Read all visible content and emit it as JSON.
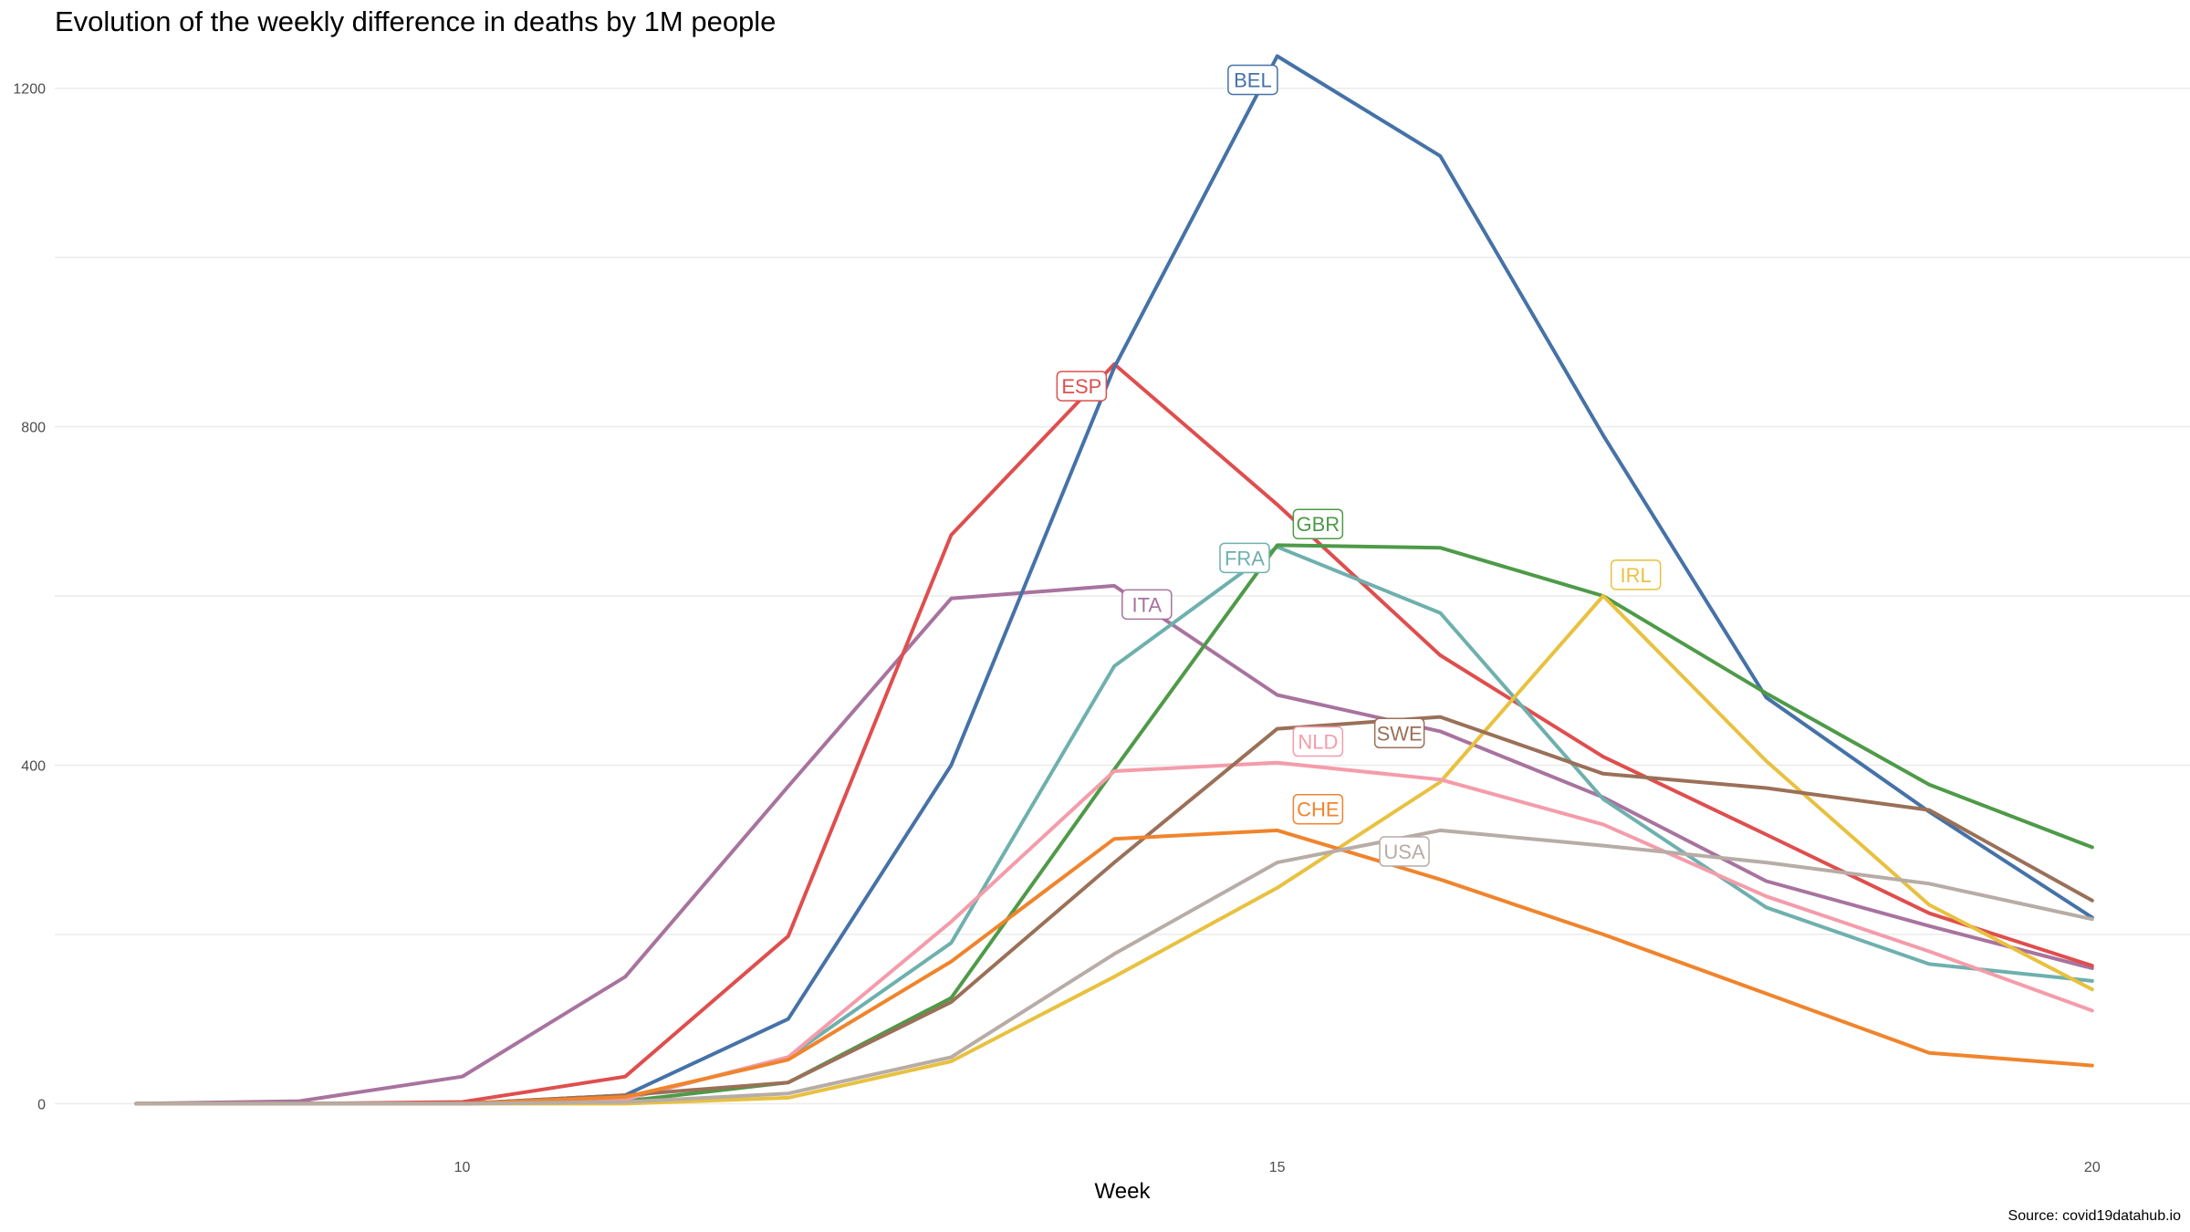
{
  "chart_data": {
    "type": "line",
    "title": "Evolution of the weekly difference in deaths by 1M people",
    "xlabel": "Week",
    "ylabel": "",
    "caption": "Source: covid19datahub.io",
    "xlim": [
      7.5,
      20.6
    ],
    "ylim": [
      -60,
      1245
    ],
    "x_ticks": [
      10,
      15,
      20
    ],
    "y_ticks": [
      0,
      400,
      800,
      1200
    ],
    "y_minor_ticks": [
      200,
      600,
      1000
    ],
    "grid": true,
    "legend": "none",
    "series": [
      {
        "name": "ITA",
        "color": "#A8739E",
        "x": [
          8,
          9,
          10,
          11,
          12,
          13,
          14,
          15,
          16,
          17,
          18,
          19,
          20
        ],
        "y": [
          0,
          3,
          32,
          150,
          375,
          597,
          612,
          483,
          440,
          362,
          263,
          210,
          160
        ],
        "label": {
          "x": 14.2,
          "y": 590
        }
      },
      {
        "name": "ESP",
        "color": "#DF4E4E",
        "x": [
          8,
          9,
          10,
          11,
          12,
          13,
          14,
          15,
          16,
          17,
          18,
          19,
          20
        ],
        "y": [
          0,
          0,
          2,
          32,
          198,
          672,
          874,
          708,
          530,
          410,
          318,
          225,
          163
        ],
        "label": {
          "x": 13.8,
          "y": 848
        }
      },
      {
        "name": "BEL",
        "color": "#4572A7",
        "x": [
          8,
          9,
          10,
          11,
          12,
          13,
          14,
          15,
          16,
          17,
          18,
          19,
          20
        ],
        "y": [
          0,
          0,
          0,
          10,
          100,
          400,
          870,
          1238,
          1120,
          790,
          480,
          345,
          220
        ],
        "label": {
          "x": 14.85,
          "y": 1210
        }
      },
      {
        "name": "FRA",
        "color": "#6EB0AD",
        "x": [
          8,
          9,
          10,
          11,
          12,
          13,
          14,
          15,
          16,
          17,
          18,
          19,
          20
        ],
        "y": [
          0,
          0,
          0,
          5,
          55,
          190,
          517,
          658,
          580,
          360,
          232,
          165,
          145
        ],
        "label": {
          "x": 14.8,
          "y": 645
        }
      },
      {
        "name": "GBR",
        "color": "#4E9A48",
        "x": [
          8,
          9,
          10,
          11,
          12,
          13,
          14,
          15,
          16,
          17,
          18,
          19,
          20
        ],
        "y": [
          0,
          0,
          0,
          3,
          25,
          125,
          395,
          660,
          657,
          600,
          485,
          377,
          303
        ],
        "label": {
          "x": 15.25,
          "y": 685
        }
      },
      {
        "name": "IRL",
        "color": "#E8C13F",
        "x": [
          8,
          9,
          10,
          11,
          12,
          13,
          14,
          15,
          16,
          17,
          18,
          19,
          20
        ],
        "y": [
          0,
          0,
          0,
          0,
          7,
          50,
          150,
          255,
          380,
          600,
          405,
          235,
          135
        ],
        "label": {
          "x": 17.2,
          "y": 625
        }
      },
      {
        "name": "NLD",
        "color": "#F49CAA",
        "x": [
          8,
          9,
          10,
          11,
          12,
          13,
          14,
          15,
          16,
          17,
          18,
          19,
          20
        ],
        "y": [
          0,
          0,
          0,
          5,
          55,
          215,
          393,
          403,
          383,
          330,
          245,
          180,
          110
        ],
        "label": {
          "x": 15.25,
          "y": 428
        }
      },
      {
        "name": "SWE",
        "color": "#9A7058",
        "x": [
          8,
          9,
          10,
          11,
          12,
          13,
          14,
          15,
          16,
          17,
          18,
          19,
          20
        ],
        "y": [
          0,
          0,
          0,
          10,
          25,
          120,
          285,
          443,
          457,
          390,
          373,
          347,
          240
        ],
        "label": {
          "x": 15.75,
          "y": 438
        }
      },
      {
        "name": "CHE",
        "color": "#F0842C",
        "x": [
          8,
          9,
          10,
          11,
          12,
          13,
          14,
          15,
          16,
          17,
          18,
          19,
          20
        ],
        "y": [
          0,
          0,
          0,
          8,
          52,
          168,
          313,
          323,
          265,
          200,
          130,
          60,
          45
        ],
        "label": {
          "x": 15.25,
          "y": 348
        }
      },
      {
        "name": "USA",
        "color": "#B7ACA6",
        "x": [
          8,
          9,
          10,
          11,
          12,
          13,
          14,
          15,
          16,
          17,
          18,
          19,
          20
        ],
        "y": [
          0,
          0,
          0,
          2,
          12,
          55,
          177,
          285,
          323,
          305,
          285,
          260,
          218
        ],
        "label": {
          "x": 15.78,
          "y": 298
        }
      }
    ]
  }
}
